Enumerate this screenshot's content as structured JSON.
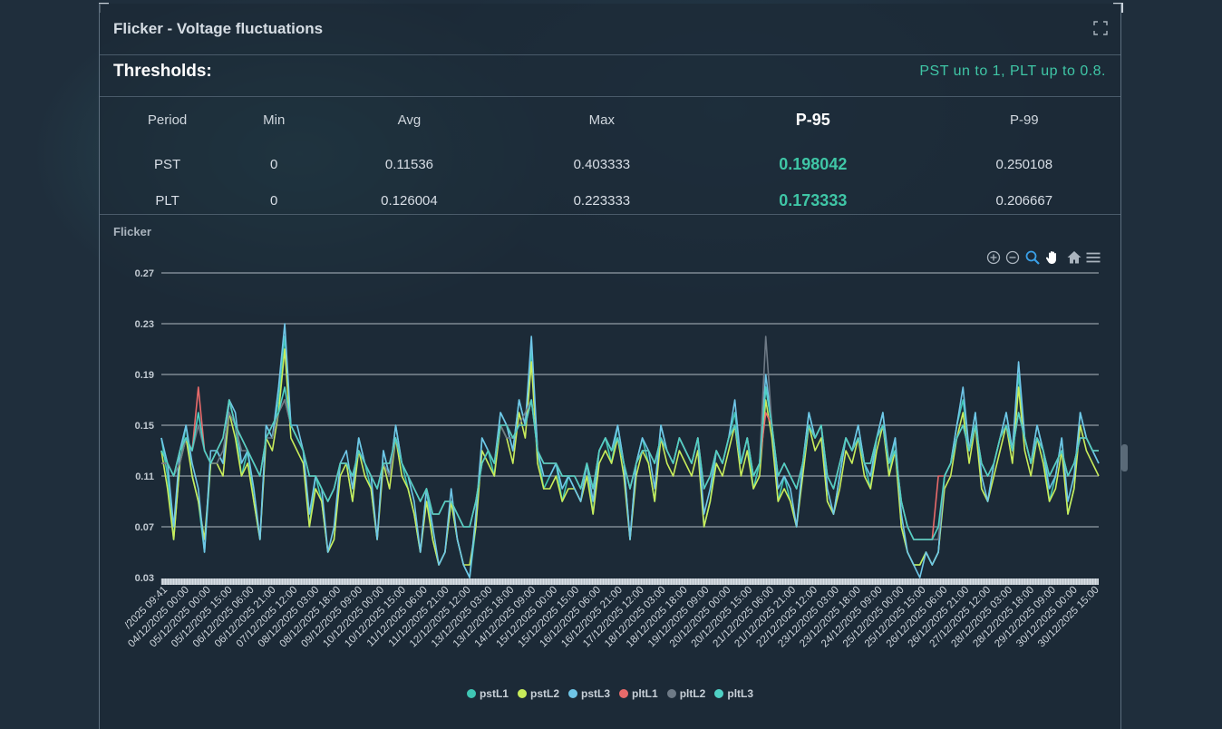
{
  "panel": {
    "title": "Flicker - Voltage fluctuations",
    "thresholds_label": "Thresholds:",
    "thresholds_note": "PST un to 1, PLT up to 0.8."
  },
  "table": {
    "headers": [
      "Period",
      "Min",
      "Avg",
      "Max",
      "P-95",
      "P-99"
    ],
    "rows": [
      [
        "PST",
        "0",
        "0.11536",
        "0.403333",
        "0.198042",
        "0.250108"
      ],
      [
        "PLT",
        "0",
        "0.126004",
        "0.223333",
        "0.173333",
        "0.206667"
      ]
    ]
  },
  "colors": {
    "accent": "#3fc6a6",
    "pstL1": "#3fc6b4",
    "pstL2": "#c8ec5a",
    "pstL3": "#6fc6e8",
    "pltL1": "#e86a6a",
    "pltL2": "#6e7a86",
    "pltL3": "#4fd1c5"
  },
  "toolbar": [
    "zoom-in-icon",
    "zoom-out-icon",
    "zoom-select-icon",
    "pan-icon",
    "home-icon",
    "menu-icon"
  ],
  "chart_data": {
    "type": "line",
    "title": "Flicker",
    "xlabel": "",
    "ylabel": "",
    "ylim": [
      0.03,
      0.27
    ],
    "yticks": [
      "0.27",
      "0.23",
      "0.19",
      "0.15",
      "0.11",
      "0.07",
      "0.03"
    ],
    "grid": true,
    "legend": "bottom",
    "xticks": [
      "/2025 09:41",
      "04/12/2025 00:00",
      "05/12/2025 00:00",
      "05/12/2025 15:00",
      "06/12/2025 06:00",
      "06/12/2025 21:00",
      "07/12/2025 12:00",
      "08/12/2025 03:00",
      "08/12/2025 18:00",
      "09/12/2025 09:00",
      "10/12/2025 00:00",
      "10/12/2025 15:00",
      "11/12/2025 06:00",
      "11/12/2025 21:00",
      "12/12/2025 12:00",
      "13/12/2025 03:00",
      "13/12/2025 18:00",
      "14/12/2025 09:00",
      "15/12/2025 00:00",
      "15/12/2025 15:00",
      "16/12/2025 06:00",
      "16/12/2025 21:00",
      "17/12/2025 12:00",
      "18/12/2025 03:00",
      "18/12/2025 18:00",
      "19/12/2025 09:00",
      "20/12/2025 00:00",
      "20/12/2025 15:00",
      "21/12/2025 06:00",
      "21/12/2025 21:00",
      "22/12/2025 12:00",
      "23/12/2025 03:00",
      "23/12/2025 18:00",
      "24/12/2025 09:00",
      "25/12/2025 00:00",
      "25/12/2025 15:00",
      "26/12/2025 06:00",
      "26/12/2025 21:00",
      "27/12/2025 12:00",
      "28/12/2025 03:00",
      "28/12/2025 18:00",
      "29/12/2025 09:00",
      "30/12/2025 00:00",
      "30/12/2025 15:00"
    ],
    "series": [
      {
        "name": "pstL1",
        "values": [
          0.14,
          0.11,
          0.06,
          0.12,
          0.15,
          0.11,
          0.09,
          0.05,
          0.12,
          0.13,
          0.12,
          0.17,
          0.15,
          0.11,
          0.13,
          0.09,
          0.06,
          0.15,
          0.14,
          0.17,
          0.22,
          0.15,
          0.14,
          0.13,
          0.07,
          0.11,
          0.09,
          0.05,
          0.06,
          0.12,
          0.12,
          0.09,
          0.14,
          0.12,
          0.1,
          0.06,
          0.13,
          0.11,
          0.15,
          0.12,
          0.1,
          0.08,
          0.05,
          0.1,
          0.06,
          0.04,
          0.05,
          0.09,
          0.06,
          0.04,
          0.03,
          0.07,
          0.14,
          0.13,
          0.11,
          0.16,
          0.15,
          0.13,
          0.17,
          0.15,
          0.21,
          0.13,
          0.1,
          0.11,
          0.12,
          0.09,
          0.11,
          0.1,
          0.09,
          0.12,
          0.08,
          0.13,
          0.14,
          0.12,
          0.15,
          0.12,
          0.06,
          0.12,
          0.14,
          0.12,
          0.09,
          0.15,
          0.13,
          0.12,
          0.14,
          0.13,
          0.12,
          0.14,
          0.07,
          0.09,
          0.13,
          0.12,
          0.14,
          0.16,
          0.12,
          0.14,
          0.1,
          0.12,
          0.18,
          0.15,
          0.09,
          0.11,
          0.09,
          0.07,
          0.12,
          0.16,
          0.14,
          0.15,
          0.09,
          0.08,
          0.11,
          0.14,
          0.13,
          0.15,
          0.12,
          0.1,
          0.14,
          0.16,
          0.11,
          0.14,
          0.07,
          0.05,
          0.04,
          0.04,
          0.05,
          0.04,
          0.05,
          0.11,
          0.12,
          0.15,
          0.17,
          0.13,
          0.16,
          0.1,
          0.09,
          0.12,
          0.14,
          0.16,
          0.13,
          0.19,
          0.14,
          0.12,
          0.15,
          0.13,
          0.09,
          0.11,
          0.14,
          0.08,
          0.1,
          0.16,
          0.14,
          0.13,
          0.12
        ]
      },
      {
        "name": "pstL2",
        "values": [
          0.13,
          0.1,
          0.06,
          0.12,
          0.14,
          0.11,
          0.09,
          0.06,
          0.12,
          0.12,
          0.11,
          0.16,
          0.14,
          0.11,
          0.12,
          0.09,
          0.06,
          0.14,
          0.13,
          0.16,
          0.21,
          0.14,
          0.13,
          0.12,
          0.07,
          0.1,
          0.09,
          0.05,
          0.06,
          0.11,
          0.12,
          0.09,
          0.13,
          0.11,
          0.1,
          0.06,
          0.12,
          0.1,
          0.14,
          0.11,
          0.1,
          0.08,
          0.05,
          0.09,
          0.06,
          0.04,
          0.05,
          0.09,
          0.06,
          0.04,
          0.04,
          0.07,
          0.13,
          0.12,
          0.11,
          0.15,
          0.14,
          0.12,
          0.16,
          0.14,
          0.2,
          0.12,
          0.1,
          0.1,
          0.11,
          0.09,
          0.1,
          0.1,
          0.09,
          0.11,
          0.08,
          0.12,
          0.13,
          0.12,
          0.14,
          0.11,
          0.06,
          0.11,
          0.13,
          0.12,
          0.09,
          0.14,
          0.12,
          0.11,
          0.13,
          0.12,
          0.11,
          0.13,
          0.07,
          0.09,
          0.12,
          0.11,
          0.13,
          0.15,
          0.11,
          0.13,
          0.1,
          0.11,
          0.17,
          0.14,
          0.09,
          0.1,
          0.09,
          0.07,
          0.11,
          0.15,
          0.13,
          0.14,
          0.09,
          0.08,
          0.1,
          0.13,
          0.12,
          0.14,
          0.11,
          0.1,
          0.13,
          0.15,
          0.11,
          0.13,
          0.07,
          0.05,
          0.04,
          0.04,
          0.05,
          0.04,
          0.05,
          0.1,
          0.11,
          0.14,
          0.16,
          0.12,
          0.15,
          0.1,
          0.09,
          0.11,
          0.13,
          0.15,
          0.12,
          0.18,
          0.13,
          0.11,
          0.14,
          0.12,
          0.09,
          0.1,
          0.13,
          0.08,
          0.1,
          0.15,
          0.13,
          0.12,
          0.11
        ]
      },
      {
        "name": "pstL3",
        "values": [
          0.14,
          0.12,
          0.07,
          0.13,
          0.15,
          0.12,
          0.1,
          0.05,
          0.13,
          0.13,
          0.12,
          0.17,
          0.16,
          0.12,
          0.13,
          0.1,
          0.06,
          0.15,
          0.14,
          0.18,
          0.23,
          0.15,
          0.15,
          0.13,
          0.08,
          0.11,
          0.1,
          0.05,
          0.07,
          0.12,
          0.13,
          0.1,
          0.14,
          0.12,
          0.11,
          0.06,
          0.13,
          0.11,
          0.15,
          0.12,
          0.11,
          0.09,
          0.05,
          0.1,
          0.07,
          0.04,
          0.05,
          0.1,
          0.06,
          0.04,
          0.03,
          0.08,
          0.14,
          0.13,
          0.12,
          0.16,
          0.15,
          0.13,
          0.17,
          0.15,
          0.22,
          0.13,
          0.11,
          0.11,
          0.12,
          0.1,
          0.11,
          0.1,
          0.09,
          0.12,
          0.09,
          0.13,
          0.14,
          0.13,
          0.15,
          0.12,
          0.06,
          0.12,
          0.14,
          0.13,
          0.1,
          0.15,
          0.13,
          0.12,
          0.14,
          0.13,
          0.12,
          0.14,
          0.08,
          0.1,
          0.13,
          0.12,
          0.14,
          0.17,
          0.12,
          0.14,
          0.11,
          0.12,
          0.19,
          0.15,
          0.1,
          0.11,
          0.1,
          0.07,
          0.12,
          0.16,
          0.14,
          0.15,
          0.1,
          0.08,
          0.11,
          0.14,
          0.13,
          0.15,
          0.12,
          0.11,
          0.14,
          0.16,
          0.12,
          0.14,
          0.08,
          0.05,
          0.04,
          0.03,
          0.05,
          0.04,
          0.05,
          0.11,
          0.12,
          0.15,
          0.18,
          0.13,
          0.16,
          0.11,
          0.09,
          0.12,
          0.14,
          0.16,
          0.13,
          0.2,
          0.14,
          0.12,
          0.15,
          0.13,
          0.1,
          0.11,
          0.14,
          0.09,
          0.11,
          0.16,
          0.14,
          0.13,
          0.12
        ]
      },
      {
        "name": "pltL1",
        "values": [
          0.12,
          0.12,
          0.11,
          0.13,
          0.14,
          0.13,
          0.18,
          0.13,
          0.12,
          0.13,
          0.14,
          0.17,
          0.15,
          0.14,
          0.13,
          0.12,
          0.11,
          0.14,
          0.15,
          0.16,
          0.17,
          0.15,
          0.14,
          0.13,
          0.11,
          0.11,
          0.1,
          0.09,
          0.1,
          0.12,
          0.12,
          0.11,
          0.13,
          0.12,
          0.11,
          0.1,
          0.12,
          0.12,
          0.14,
          0.12,
          0.11,
          0.1,
          0.09,
          0.1,
          0.08,
          0.08,
          0.09,
          0.09,
          0.08,
          0.07,
          0.07,
          0.09,
          0.12,
          0.13,
          0.12,
          0.15,
          0.15,
          0.14,
          0.15,
          0.15,
          0.17,
          0.13,
          0.12,
          0.12,
          0.12,
          0.11,
          0.11,
          0.11,
          0.1,
          0.12,
          0.1,
          0.13,
          0.14,
          0.13,
          0.14,
          0.12,
          0.1,
          0.12,
          0.13,
          0.13,
          0.12,
          0.14,
          0.13,
          0.12,
          0.14,
          0.13,
          0.12,
          0.14,
          0.1,
          0.11,
          0.13,
          0.12,
          0.14,
          0.15,
          0.12,
          0.14,
          0.11,
          0.12,
          0.16,
          0.15,
          0.11,
          0.12,
          0.11,
          0.1,
          0.12,
          0.15,
          0.14,
          0.15,
          0.11,
          0.1,
          0.12,
          0.14,
          0.13,
          0.14,
          0.12,
          0.12,
          0.14,
          0.15,
          0.12,
          0.13,
          0.09,
          0.07,
          0.06,
          0.06,
          0.06,
          0.06,
          0.11,
          0.11,
          0.12,
          0.14,
          0.15,
          0.13,
          0.15,
          0.12,
          0.11,
          0.12,
          0.14,
          0.15,
          0.13,
          0.16,
          0.14,
          0.12,
          0.14,
          0.13,
          0.11,
          0.12,
          0.13,
          0.11,
          0.12,
          0.14,
          0.14,
          0.13,
          0.13
        ]
      },
      {
        "name": "pltL2",
        "values": [
          0.12,
          0.12,
          0.11,
          0.12,
          0.14,
          0.13,
          0.15,
          0.13,
          0.12,
          0.12,
          0.13,
          0.16,
          0.15,
          0.13,
          0.13,
          0.12,
          0.11,
          0.14,
          0.14,
          0.16,
          0.17,
          0.15,
          0.14,
          0.13,
          0.11,
          0.11,
          0.1,
          0.09,
          0.1,
          0.12,
          0.12,
          0.11,
          0.13,
          0.12,
          0.11,
          0.1,
          0.12,
          0.11,
          0.14,
          0.12,
          0.11,
          0.1,
          0.09,
          0.1,
          0.08,
          0.08,
          0.09,
          0.09,
          0.08,
          0.07,
          0.07,
          0.09,
          0.12,
          0.13,
          0.12,
          0.15,
          0.14,
          0.14,
          0.15,
          0.16,
          0.17,
          0.13,
          0.12,
          0.12,
          0.12,
          0.11,
          0.11,
          0.11,
          0.1,
          0.12,
          0.1,
          0.13,
          0.14,
          0.13,
          0.14,
          0.12,
          0.1,
          0.12,
          0.13,
          0.13,
          0.12,
          0.14,
          0.13,
          0.12,
          0.14,
          0.13,
          0.12,
          0.14,
          0.1,
          0.11,
          0.13,
          0.12,
          0.14,
          0.15,
          0.12,
          0.14,
          0.11,
          0.12,
          0.22,
          0.15,
          0.11,
          0.12,
          0.11,
          0.1,
          0.12,
          0.15,
          0.14,
          0.15,
          0.11,
          0.1,
          0.12,
          0.14,
          0.13,
          0.14,
          0.12,
          0.12,
          0.14,
          0.15,
          0.12,
          0.13,
          0.09,
          0.07,
          0.06,
          0.06,
          0.06,
          0.06,
          0.06,
          0.11,
          0.12,
          0.14,
          0.15,
          0.13,
          0.15,
          0.12,
          0.11,
          0.12,
          0.14,
          0.15,
          0.13,
          0.16,
          0.14,
          0.12,
          0.14,
          0.13,
          0.11,
          0.12,
          0.13,
          0.11,
          0.12,
          0.14,
          0.14,
          0.13,
          0.13
        ]
      },
      {
        "name": "pltL3",
        "values": [
          0.13,
          0.12,
          0.11,
          0.13,
          0.14,
          0.13,
          0.16,
          0.13,
          0.12,
          0.13,
          0.14,
          0.17,
          0.15,
          0.14,
          0.13,
          0.12,
          0.11,
          0.14,
          0.15,
          0.16,
          0.18,
          0.15,
          0.14,
          0.13,
          0.11,
          0.11,
          0.1,
          0.09,
          0.1,
          0.12,
          0.12,
          0.11,
          0.13,
          0.12,
          0.11,
          0.1,
          0.12,
          0.12,
          0.14,
          0.12,
          0.11,
          0.1,
          0.09,
          0.1,
          0.08,
          0.08,
          0.09,
          0.09,
          0.08,
          0.07,
          0.07,
          0.09,
          0.12,
          0.13,
          0.12,
          0.15,
          0.15,
          0.14,
          0.15,
          0.15,
          0.17,
          0.13,
          0.12,
          0.12,
          0.12,
          0.11,
          0.11,
          0.11,
          0.1,
          0.12,
          0.1,
          0.13,
          0.14,
          0.13,
          0.14,
          0.12,
          0.1,
          0.12,
          0.13,
          0.13,
          0.12,
          0.14,
          0.13,
          0.12,
          0.14,
          0.13,
          0.12,
          0.14,
          0.1,
          0.11,
          0.13,
          0.12,
          0.14,
          0.15,
          0.12,
          0.14,
          0.11,
          0.12,
          0.18,
          0.15,
          0.11,
          0.12,
          0.11,
          0.1,
          0.12,
          0.15,
          0.14,
          0.15,
          0.11,
          0.1,
          0.12,
          0.14,
          0.13,
          0.14,
          0.12,
          0.12,
          0.14,
          0.15,
          0.12,
          0.13,
          0.09,
          0.07,
          0.06,
          0.06,
          0.06,
          0.06,
          0.07,
          0.11,
          0.12,
          0.14,
          0.15,
          0.13,
          0.15,
          0.12,
          0.11,
          0.12,
          0.14,
          0.15,
          0.13,
          0.16,
          0.14,
          0.12,
          0.14,
          0.13,
          0.11,
          0.12,
          0.13,
          0.11,
          0.12,
          0.14,
          0.14,
          0.13,
          0.13
        ]
      }
    ]
  }
}
